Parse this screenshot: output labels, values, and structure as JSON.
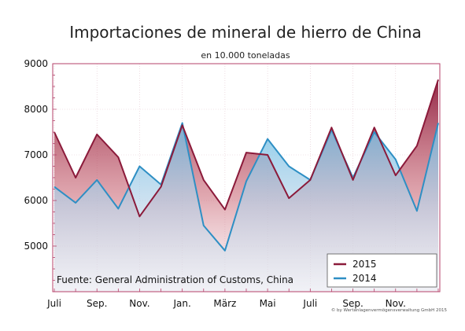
{
  "chart_data": {
    "type": "area",
    "title": "Importaciones de mineral de hierro de China",
    "subtitle": "en 10.000 toneladas",
    "xlabel": "",
    "ylabel": "",
    "ylim": [
      4000,
      9000
    ],
    "y_ticks": [
      {
        "value": 9000,
        "label": "9000"
      },
      {
        "value": 8000,
        "label": "8000"
      },
      {
        "value": 7000,
        "label": "7000"
      },
      {
        "value": 6000,
        "label": "6000"
      },
      {
        "value": 5000,
        "label": "5000"
      }
    ],
    "x_ticks": [
      {
        "index": 0,
        "label": "Juli"
      },
      {
        "index": 2,
        "label": "Sep."
      },
      {
        "index": 4,
        "label": "Nov."
      },
      {
        "index": 6,
        "label": "Jan."
      },
      {
        "index": 8,
        "label": "März"
      },
      {
        "index": 10,
        "label": "Mai"
      },
      {
        "index": 12,
        "label": "Juli"
      },
      {
        "index": 14,
        "label": "Sep."
      },
      {
        "index": 16,
        "label": "Nov."
      }
    ],
    "grid": true,
    "legend_position": "bottom-right",
    "series": [
      {
        "name": "2015",
        "color": "#8b1a3a",
        "values": [
          7500,
          6500,
          7450,
          6950,
          5650,
          6300,
          7650,
          6450,
          5800,
          7050,
          7000,
          6050,
          6450,
          7600,
          6450,
          7600,
          6550,
          7200,
          8650
        ]
      },
      {
        "name": "2014",
        "color": "#2e8fc4",
        "values": [
          6300,
          5950,
          6450,
          5820,
          6750,
          6350,
          7700,
          5450,
          4900,
          6420,
          7350,
          6750,
          6450,
          7550,
          6500,
          7500,
          6900,
          5770,
          7700
        ]
      }
    ],
    "annotations": {
      "source": "Fuente: General Administration of Customs, China",
      "copyright": "© by Wertanlagenvermögensverwaltung GmbH 2015"
    }
  }
}
